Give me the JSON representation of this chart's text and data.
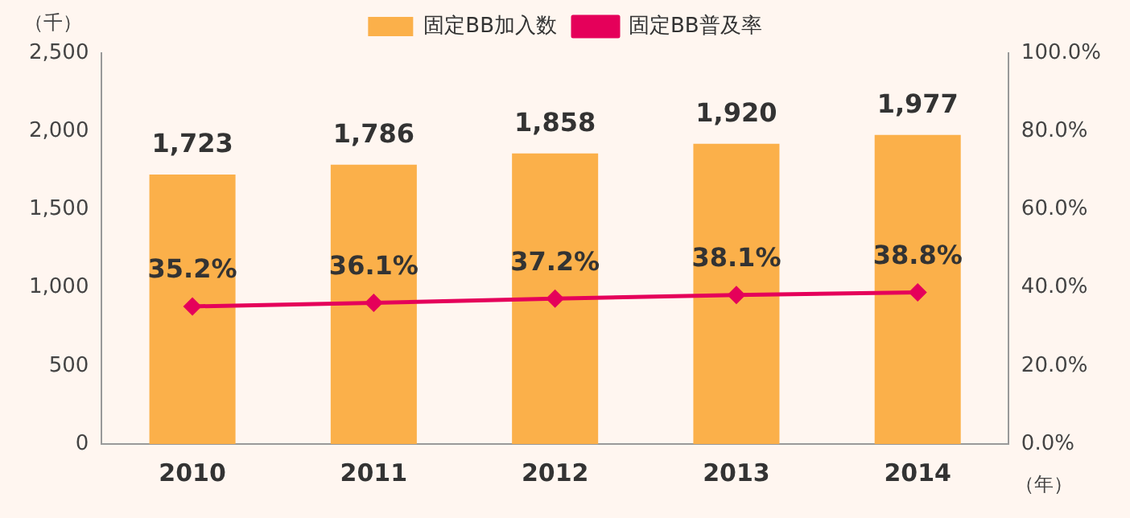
{
  "chart_data": {
    "type": "bar",
    "xlabel": "（年）",
    "ylabel": "（千）",
    "categories": [
      "2010",
      "2011",
      "2012",
      "2013",
      "2014"
    ],
    "series": [
      {
        "name": "固定BB加入数",
        "color": "#fbb04a",
        "values": [
          1723,
          1786,
          1858,
          1920,
          1977
        ],
        "value_labels": [
          "1,723",
          "1,786",
          "1,858",
          "1,920",
          "1,977"
        ]
      },
      {
        "name": "固定BB普及率",
        "type": "line",
        "axis": "y2",
        "color": "#e5005a",
        "marker": "diamond",
        "values": [
          35.2,
          36.1,
          37.2,
          38.1,
          38.8
        ],
        "value_labels": [
          "35.2%",
          "36.1%",
          "37.2%",
          "38.1%",
          "38.8%"
        ]
      }
    ],
    "ylim": [
      0,
      2500
    ],
    "yticks": [
      {
        "value": 0,
        "label": "0"
      },
      {
        "value": 500,
        "label": "500"
      },
      {
        "value": 1000,
        "label": "1,000"
      },
      {
        "value": 1500,
        "label": "1,500"
      },
      {
        "value": 2000,
        "label": "2,000"
      },
      {
        "value": 2500,
        "label": "2,500"
      }
    ],
    "y2lim": [
      0,
      100
    ],
    "y2ticks": [
      {
        "value": 0,
        "label": "0.0%"
      },
      {
        "value": 20,
        "label": "20.0%"
      },
      {
        "value": 40,
        "label": "40.0%"
      },
      {
        "value": 60,
        "label": "60.0%"
      },
      {
        "value": 80,
        "label": "80.0%"
      },
      {
        "value": 100,
        "label": "100.0%"
      }
    ],
    "legend": "top"
  }
}
